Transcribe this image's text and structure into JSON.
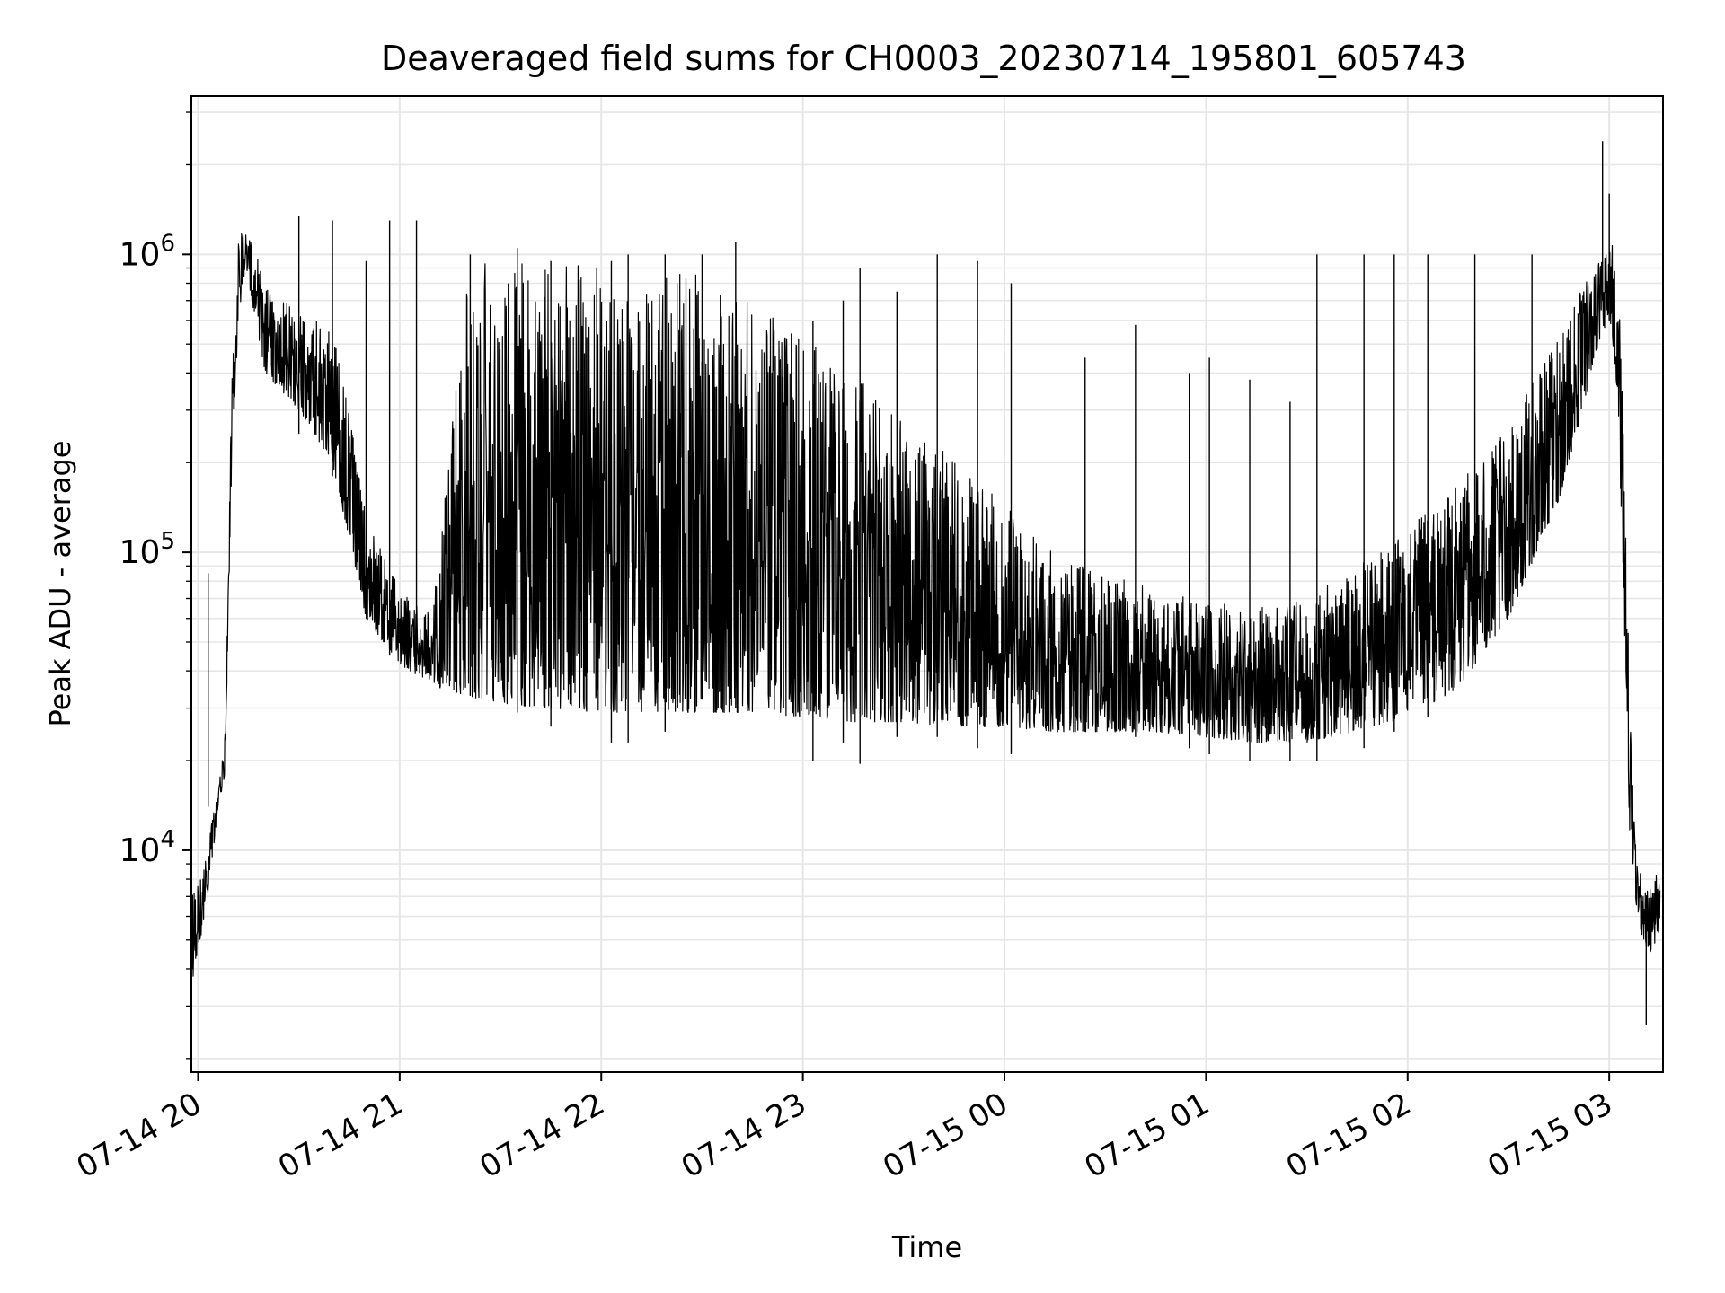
{
  "chart_data": {
    "type": "line",
    "title": "Deaveraged field sums for CH0003_20230714_195801_605743",
    "xlabel": "Time",
    "ylabel": "Peak ADU - average",
    "xscale": "time",
    "yscale": "log",
    "xlim": [
      "2023-07-14 19:58",
      "2023-07-15 03:16"
    ],
    "ylim": [
      1800,
      3400000
    ],
    "grid": true,
    "line_color": "#000000",
    "grid_color": "#e6e6e6",
    "x_ticks": [
      {
        "value": "2023-07-14 20:00",
        "label": "07-14 20"
      },
      {
        "value": "2023-07-14 21:00",
        "label": "07-14 21"
      },
      {
        "value": "2023-07-14 22:00",
        "label": "07-14 22"
      },
      {
        "value": "2023-07-14 23:00",
        "label": "07-14 23"
      },
      {
        "value": "2023-07-15 00:00",
        "label": "07-15 00"
      },
      {
        "value": "2023-07-15 01:00",
        "label": "07-15 01"
      },
      {
        "value": "2023-07-15 02:00",
        "label": "07-15 02"
      },
      {
        "value": "2023-07-15 03:00",
        "label": "07-15 03"
      }
    ],
    "y_ticks": [
      {
        "value": 10000,
        "base": "10",
        "exp": "4"
      },
      {
        "value": 100000,
        "base": "10",
        "exp": "5"
      },
      {
        "value": 1000000,
        "base": "10",
        "exp": "6"
      }
    ],
    "series": [
      {
        "band": {
          "x": [
            "2023-07-14 19:58",
            "2023-07-14 20:02",
            "2023-07-14 20:04",
            "2023-07-14 20:06",
            "2023-07-14 20:08",
            "2023-07-14 20:10",
            "2023-07-14 20:12",
            "2023-07-14 20:14",
            "2023-07-14 20:16",
            "2023-07-14 20:20",
            "2023-07-14 20:30",
            "2023-07-14 20:40",
            "2023-07-14 20:45",
            "2023-07-14 20:50",
            "2023-07-14 21:00",
            "2023-07-14 21:10",
            "2023-07-14 21:20",
            "2023-07-14 21:30",
            "2023-07-14 21:45",
            "2023-07-14 22:00",
            "2023-07-14 22:15",
            "2023-07-14 22:30",
            "2023-07-14 22:45",
            "2023-07-14 23:00",
            "2023-07-14 23:15",
            "2023-07-14 23:30",
            "2023-07-14 23:45",
            "2023-07-15 00:00",
            "2023-07-15 00:15",
            "2023-07-15 00:30",
            "2023-07-15 00:45",
            "2023-07-15 01:00",
            "2023-07-15 01:15",
            "2023-07-15 01:30",
            "2023-07-15 01:45",
            "2023-07-15 02:00",
            "2023-07-15 02:15",
            "2023-07-15 02:30",
            "2023-07-15 02:45",
            "2023-07-15 02:55",
            "2023-07-15 03:00",
            "2023-07-15 03:02",
            "2023-07-15 03:04",
            "2023-07-15 03:06",
            "2023-07-15 03:08",
            "2023-07-15 03:10",
            "2023-07-15 03:12",
            "2023-07-15 03:14",
            "2023-07-15 03:15"
          ],
          "low": [
            3500,
            6000,
            9000,
            14000,
            18000,
            200000,
            600000,
            900000,
            700000,
            400000,
            300000,
            200000,
            110000,
            60000,
            42000,
            36000,
            33000,
            31000,
            30000,
            29000,
            29000,
            29000,
            29000,
            28000,
            27000,
            27000,
            26000,
            26000,
            25000,
            25000,
            25000,
            24000,
            23000,
            23000,
            25000,
            28000,
            35000,
            60000,
            150000,
            400000,
            650000,
            400000,
            100000,
            12000,
            6500,
            5000,
            4500,
            5000,
            5500
          ],
          "high": [
            7500,
            9000,
            13000,
            16000,
            25000,
            400000,
            1200000,
            1300000,
            1100000,
            800000,
            650000,
            550000,
            300000,
            130000,
            75000,
            65000,
            900000,
            1000000,
            900000,
            950000,
            950000,
            850000,
            700000,
            550000,
            400000,
            300000,
            200000,
            150000,
            100000,
            85000,
            75000,
            70000,
            65000,
            70000,
            90000,
            120000,
            170000,
            260000,
            550000,
            900000,
            1200000,
            1000000,
            400000,
            30000,
            9000,
            8500,
            7500,
            8500,
            8000
          ]
        },
        "spikes": [
          {
            "x": "2023-07-14 20:03",
            "low": 14000,
            "high": 85000
          },
          {
            "x": "2023-07-14 20:30",
            "low": 250000,
            "high": 1350000
          },
          {
            "x": "2023-07-14 20:40",
            "low": 180000,
            "high": 1300000
          },
          {
            "x": "2023-07-14 20:50",
            "low": 70000,
            "high": 950000
          },
          {
            "x": "2023-07-14 20:57",
            "low": 45000,
            "high": 1300000
          },
          {
            "x": "2023-07-14 21:05",
            "low": 40000,
            "high": 1300000
          },
          {
            "x": "2023-07-14 21:12",
            "low": 35000,
            "high": 85000
          },
          {
            "x": "2023-07-14 21:21",
            "low": 33000,
            "high": 1000000
          },
          {
            "x": "2023-07-14 21:35",
            "low": 29000,
            "high": 1050000
          },
          {
            "x": "2023-07-14 21:45",
            "low": 26000,
            "high": 950000
          },
          {
            "x": "2023-07-14 22:03",
            "low": 23000,
            "high": 950000
          },
          {
            "x": "2023-07-14 22:08",
            "low": 23000,
            "high": 1000000
          },
          {
            "x": "2023-07-14 22:19",
            "low": 25000,
            "high": 1000000
          },
          {
            "x": "2023-07-14 22:30",
            "low": 32000,
            "high": 1000000
          },
          {
            "x": "2023-07-14 22:40",
            "low": 30000,
            "high": 1100000
          },
          {
            "x": "2023-07-14 23:03",
            "low": 20000,
            "high": 600000
          },
          {
            "x": "2023-07-14 23:12",
            "low": 23000,
            "high": 700000
          },
          {
            "x": "2023-07-14 23:17",
            "low": 19500,
            "high": 900000
          },
          {
            "x": "2023-07-14 23:28",
            "low": 24000,
            "high": 750000
          },
          {
            "x": "2023-07-14 23:40",
            "low": 24000,
            "high": 1000000
          },
          {
            "x": "2023-07-14 23:52",
            "low": 22000,
            "high": 950000
          },
          {
            "x": "2023-07-15 00:02",
            "low": 21000,
            "high": 800000
          },
          {
            "x": "2023-07-15 00:24",
            "low": 25000,
            "high": 450000
          },
          {
            "x": "2023-07-15 00:39",
            "low": 24000,
            "high": 580000
          },
          {
            "x": "2023-07-15 00:55",
            "low": 22000,
            "high": 400000
          },
          {
            "x": "2023-07-15 01:01",
            "low": 21000,
            "high": 450000
          },
          {
            "x": "2023-07-15 01:13",
            "low": 20000,
            "high": 380000
          },
          {
            "x": "2023-07-15 01:25",
            "low": 20000,
            "high": 320000
          },
          {
            "x": "2023-07-15 01:33",
            "low": 20000,
            "high": 1000000
          },
          {
            "x": "2023-07-15 01:47",
            "low": 22000,
            "high": 1000000
          },
          {
            "x": "2023-07-15 01:56",
            "low": 25000,
            "high": 1000000
          },
          {
            "x": "2023-07-15 02:06",
            "low": 28000,
            "high": 1000000
          },
          {
            "x": "2023-07-15 02:20",
            "low": 45000,
            "high": 1000000
          },
          {
            "x": "2023-07-15 02:37",
            "low": 120000,
            "high": 1000000
          },
          {
            "x": "2023-07-15 02:58",
            "low": 700000,
            "high": 2400000
          },
          {
            "x": "2023-07-15 03:00",
            "low": 600000,
            "high": 1600000
          },
          {
            "x": "2023-07-15 03:11",
            "low": 2600,
            "high": 6000
          }
        ]
      }
    ]
  }
}
